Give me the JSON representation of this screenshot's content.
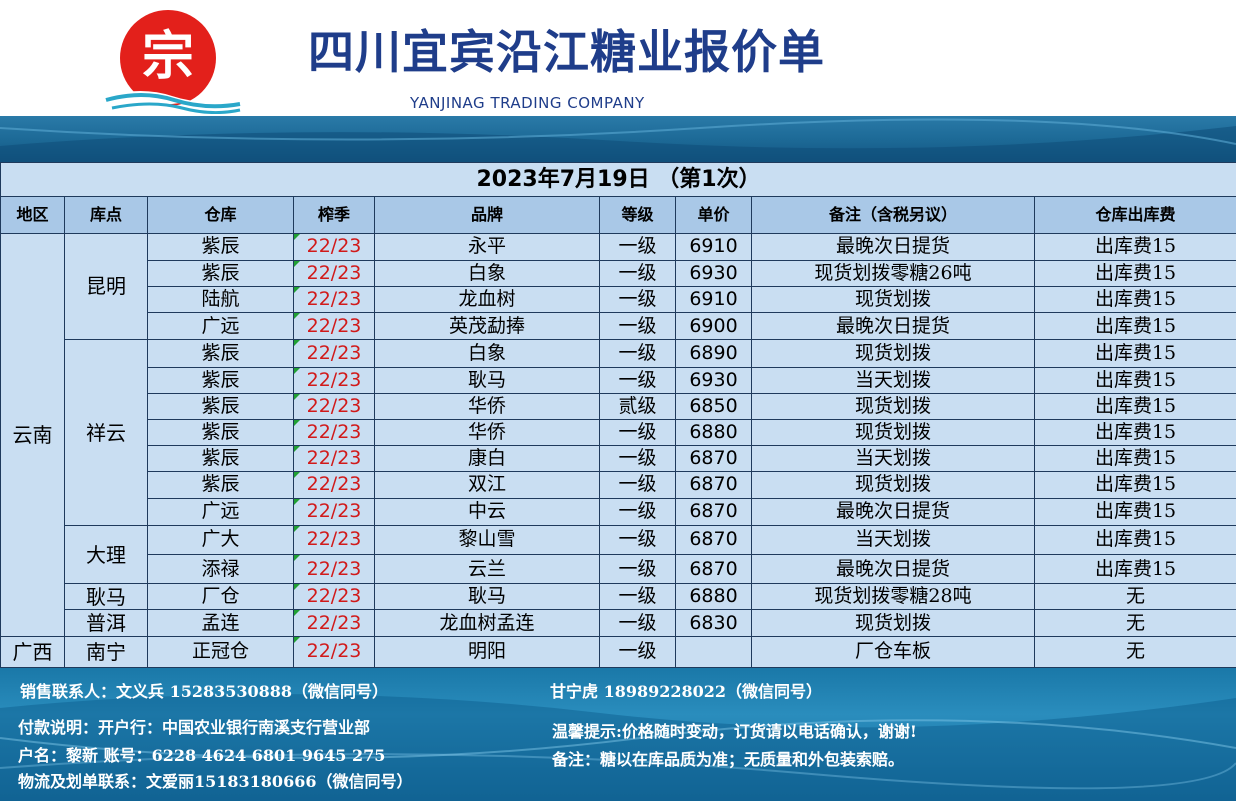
{
  "header": {
    "title": "四川宜宾沿江糖业报价单",
    "subtitle": "YANJINAG TRADING COMPANY",
    "logo_char": "宗",
    "colors": {
      "title": "#1f3d8a",
      "logo_red": "#e3201b",
      "banner": "#1d6a97"
    }
  },
  "date_line": "2023年7月19日 （第1次）",
  "table": {
    "columns": [
      "地区",
      "库点",
      "仓库",
      "榨季",
      "品牌",
      "等级",
      "单价",
      "备注（含税另议）",
      "仓库出库费"
    ],
    "groups": [
      {
        "region": "云南",
        "sites": [
          {
            "site": "昆明",
            "rows": [
              {
                "warehouse": "紫辰",
                "season": "22/23",
                "brand": "永平",
                "grade": "一级",
                "price": "6910",
                "note": "最晚次日提货",
                "fee": "出库费15"
              },
              {
                "warehouse": "紫辰",
                "season": "22/23",
                "brand": "白象",
                "grade": "一级",
                "price": "6930",
                "note": "现货划拨零糖26吨",
                "fee": "出库费15"
              },
              {
                "warehouse": "陆航",
                "season": "22/23",
                "brand": "龙血树",
                "grade": "一级",
                "price": "6910",
                "note": "现货划拨",
                "fee": "出库费15"
              },
              {
                "warehouse": "广远",
                "season": "22/23",
                "brand": "英茂勐捧",
                "grade": "一级",
                "price": "6900",
                "note": "最晚次日提货",
                "fee": "出库费15"
              }
            ]
          },
          {
            "site": "祥云",
            "rows": [
              {
                "warehouse": "紫辰",
                "season": "22/23",
                "brand": "白象",
                "grade": "一级",
                "price": "6890",
                "note": "现货划拨",
                "fee": "出库费15"
              },
              {
                "warehouse": "紫辰",
                "season": "22/23",
                "brand": "耿马",
                "grade": "一级",
                "price": "6930",
                "note": "当天划拨",
                "fee": "出库费15"
              },
              {
                "warehouse": "紫辰",
                "season": "22/23",
                "brand": "华侨",
                "grade": "贰级",
                "price": "6850",
                "note": "现货划拨",
                "fee": "出库费15"
              },
              {
                "warehouse": "紫辰",
                "season": "22/23",
                "brand": "华侨",
                "grade": "一级",
                "price": "6880",
                "note": "现货划拨",
                "fee": "出库费15"
              },
              {
                "warehouse": "紫辰",
                "season": "22/23",
                "brand": "康白",
                "grade": "一级",
                "price": "6870",
                "note": "当天划拨",
                "fee": "出库费15"
              },
              {
                "warehouse": "紫辰",
                "season": "22/23",
                "brand": "双江",
                "grade": "一级",
                "price": "6870",
                "note": "现货划拨",
                "fee": "出库费15"
              },
              {
                "warehouse": "广远",
                "season": "22/23",
                "brand": "中云",
                "grade": "一级",
                "price": "6870",
                "note": "最晚次日提货",
                "fee": "出库费15"
              }
            ]
          },
          {
            "site": "大理",
            "rows": [
              {
                "warehouse": "广大",
                "season": "22/23",
                "brand": "黎山雪",
                "grade": "一级",
                "price": "6870",
                "note": "当天划拨",
                "fee": "出库费15"
              },
              {
                "warehouse": "添禄",
                "season": "22/23",
                "brand": "云兰",
                "grade": "一级",
                "price": "6870",
                "note": "最晚次日提货",
                "fee": "出库费15"
              }
            ]
          },
          {
            "site": "耿马",
            "rows": [
              {
                "warehouse": "厂仓",
                "season": "22/23",
                "brand": "耿马",
                "grade": "一级",
                "price": "6880",
                "note": "现货划拨零糖28吨",
                "fee": "无"
              }
            ]
          },
          {
            "site": "普洱",
            "rows": [
              {
                "warehouse": "孟连",
                "season": "22/23",
                "brand": "龙血树孟连",
                "grade": "一级",
                "price": "6830",
                "note": "现货划拨",
                "fee": "无"
              }
            ]
          }
        ]
      },
      {
        "region": "广西",
        "sites": [
          {
            "site": "南宁",
            "rows": [
              {
                "warehouse": "正冠仓",
                "season": "22/23",
                "brand": "明阳",
                "grade": "一级",
                "price": "",
                "note": "厂仓车板",
                "fee": "无"
              }
            ]
          }
        ]
      }
    ]
  },
  "footer": {
    "sales_contact": "销售联系人：文义兵 15283530888（微信同号）",
    "sales_contact2": "甘宁虎 18989228022（微信同号）",
    "payment": "付款说明：开户行：中国农业银行南溪支行营业部",
    "account": "户名：黎新 账号：6228 4624 6801 9645 275",
    "logistics": "物流及划单联系：文爱丽15183180666（微信同号）",
    "tip": "温馨提示:价格随时变动，订货请以电话确认，谢谢!",
    "remark": "备注：糖以在库品质为准；无质量和外包装索赔。"
  }
}
